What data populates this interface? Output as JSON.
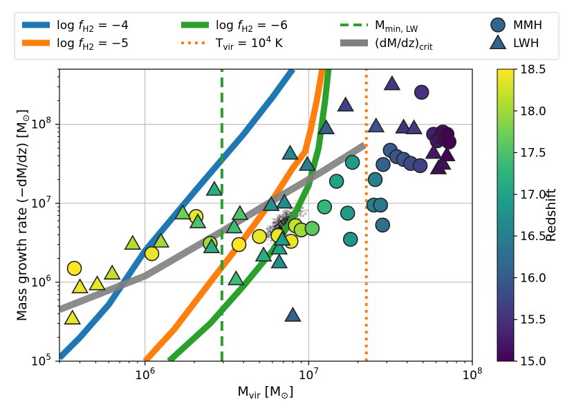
{
  "chart_data": {
    "type": "scatter",
    "title": "",
    "xlabel": {
      "base": "M",
      "sub": "vir",
      "unit": " [M",
      "unit_sub": "⊙",
      "close": "]"
    },
    "ylabel": {
      "text": "Mass growth rate (−dM/dz) [M",
      "unit_sub": "⊙",
      "close": "]"
    },
    "x_scale": "log",
    "y_scale": "log",
    "xlim": [
      300000,
      100000000
    ],
    "ylim": [
      100000,
      500000000
    ],
    "grid": true,
    "x_ticks": [
      {
        "value": 1000000,
        "base": "10",
        "exp": "6"
      },
      {
        "value": 10000000,
        "base": "10",
        "exp": "7"
      },
      {
        "value": 100000000,
        "base": "10",
        "exp": "8"
      }
    ],
    "y_ticks": [
      {
        "value": 100000,
        "base": "10",
        "exp": "5"
      },
      {
        "value": 1000000,
        "base": "10",
        "exp": "6"
      },
      {
        "value": 10000000,
        "base": "10",
        "exp": "7"
      },
      {
        "value": 100000000,
        "base": "10",
        "exp": "8"
      }
    ],
    "colorbar": {
      "label": "Redshift",
      "min": 15.0,
      "max": 18.5,
      "ticks": [
        "15.0",
        "15.5",
        "16.0",
        "16.5",
        "17.0",
        "17.5",
        "18.0",
        "18.5"
      ],
      "colormap": [
        "#440154",
        "#482878",
        "#3e4989",
        "#31688e",
        "#26828e",
        "#1f9e89",
        "#35b779",
        "#6ece58",
        "#b5de2b",
        "#fde725"
      ]
    },
    "legend": {
      "placement": "top",
      "entries": [
        {
          "id": "fh2_4",
          "kind": "line",
          "pre": "log ",
          "f": "f",
          "sub": "H2",
          "post": " = −4"
        },
        {
          "id": "fh2_6",
          "kind": "line",
          "pre": "log ",
          "f": "f",
          "sub": "H2",
          "post": " = −6"
        },
        {
          "id": "mmin",
          "kind": "line",
          "pre": "M",
          "f": "",
          "sub": "min, LW",
          "post": ""
        },
        {
          "id": "mmh",
          "kind": "marker",
          "pre": "MMH",
          "f": "",
          "sub": "",
          "post": ""
        },
        {
          "id": "fh2_5",
          "kind": "line",
          "pre": "log ",
          "f": "f",
          "sub": "H2",
          "post": " = −5"
        },
        {
          "id": "tvir",
          "kind": "line",
          "pre": "T",
          "f": "",
          "sub": "vir",
          "post": " = 10",
          "sup": "4",
          "post2": " K"
        },
        {
          "id": "crit",
          "kind": "line",
          "pre": "(dM/dz)",
          "f": "",
          "sub": "crit",
          "post": ""
        },
        {
          "id": "lwh",
          "kind": "marker",
          "pre": "LWH",
          "f": "",
          "sub": "",
          "post": ""
        }
      ]
    },
    "colors": {
      "fh2_4": "#1f77b4",
      "fh2_5": "#ff7f0e",
      "fh2_6": "#2ca02c",
      "mmin": "#2ca02c",
      "tvir": "#ff7f0e",
      "crit": "#808080",
      "grid": "#b0b0b0",
      "scatter": "#000000"
    },
    "curves": [
      {
        "id": "fh2_4",
        "style": "solid",
        "points": [
          [
            300000,
            110000
          ],
          [
            400000,
            200000
          ],
          [
            600000,
            520000
          ],
          [
            1000000,
            2500000
          ],
          [
            2000000,
            14000000
          ],
          [
            4000000,
            75000000
          ],
          [
            6000000,
            220000000
          ],
          [
            8000000,
            500000000
          ]
        ]
      },
      {
        "id": "fh2_5",
        "style": "solid",
        "points": [
          [
            1000000,
            100000
          ],
          [
            1500000,
            250000
          ],
          [
            2500000,
            1000000
          ],
          [
            4000000,
            3500000
          ],
          [
            6000000,
            11000000
          ],
          [
            8000000,
            28000000
          ],
          [
            9500000,
            45000000
          ],
          [
            10200000,
            80000000
          ],
          [
            11200000,
            200000000
          ],
          [
            12100000,
            500000000
          ]
        ]
      },
      {
        "id": "fh2_6",
        "style": "solid",
        "points": [
          [
            1400000,
            100000
          ],
          [
            2500000,
            300000
          ],
          [
            4000000,
            900000
          ],
          [
            6000000,
            2500000
          ],
          [
            8000000,
            6500000
          ],
          [
            10000000,
            17000000
          ],
          [
            11500000,
            50000000
          ],
          [
            12600000,
            200000000
          ],
          [
            13200000,
            500000000
          ]
        ]
      },
      {
        "id": "crit",
        "style": "solid",
        "points": [
          [
            300000,
            450000
          ],
          [
            1000000,
            1200000
          ],
          [
            3000000,
            4500000
          ],
          [
            7000000,
            13000000
          ],
          [
            12000000,
            25000000
          ],
          [
            22000000,
            55000000
          ]
        ]
      },
      {
        "id": "mmin",
        "style": "dashed",
        "points": [
          [
            2950000,
            100000
          ],
          [
            2950000,
            500000000
          ]
        ]
      },
      {
        "id": "tvir",
        "style": "dotted",
        "points": [
          [
            22500000,
            100000
          ],
          [
            22500000,
            500000000
          ]
        ]
      }
    ],
    "mmh": [
      {
        "x": 370000,
        "y": 1500000,
        "z": 18.5
      },
      {
        "x": 1100000,
        "y": 2300000,
        "z": 18.4
      },
      {
        "x": 2050000,
        "y": 6800000,
        "z": 18.4
      },
      {
        "x": 2500000,
        "y": 3100000,
        "z": 18.0
      },
      {
        "x": 3750000,
        "y": 3000000,
        "z": 18.5
      },
      {
        "x": 5000000,
        "y": 3800000,
        "z": 18.4
      },
      {
        "x": 6500000,
        "y": 3900000,
        "z": 18.4
      },
      {
        "x": 7800000,
        "y": 3300000,
        "z": 18.4
      },
      {
        "x": 8300000,
        "y": 5200000,
        "z": 18.2
      },
      {
        "x": 9000000,
        "y": 4600000,
        "z": 18.0
      },
      {
        "x": 10500000,
        "y": 4800000,
        "z": 17.6
      },
      {
        "x": 12500000,
        "y": 9000000,
        "z": 17.3
      },
      {
        "x": 14800000,
        "y": 19000000,
        "z": 17.0
      },
      {
        "x": 17300000,
        "y": 7500000,
        "z": 16.9
      },
      {
        "x": 18500000,
        "y": 33000000,
        "z": 16.9
      },
      {
        "x": 18000000,
        "y": 3500000,
        "z": 16.8
      },
      {
        "x": 25500000,
        "y": 20000000,
        "z": 16.5
      },
      {
        "x": 25000000,
        "y": 9500000,
        "z": 16.5
      },
      {
        "x": 27500000,
        "y": 9500000,
        "z": 16.4
      },
      {
        "x": 28300000,
        "y": 5300000,
        "z": 16.3
      },
      {
        "x": 28500000,
        "y": 31000000,
        "z": 16.1
      },
      {
        "x": 31500000,
        "y": 47000000,
        "z": 16.0
      },
      {
        "x": 34500000,
        "y": 39000000,
        "z": 15.9
      },
      {
        "x": 38000000,
        "y": 36000000,
        "z": 15.9
      },
      {
        "x": 42000000,
        "y": 32000000,
        "z": 15.8
      },
      {
        "x": 48000000,
        "y": 30000000,
        "z": 15.7
      },
      {
        "x": 49000000,
        "y": 255000000,
        "z": 15.5
      },
      {
        "x": 58000000,
        "y": 75000000,
        "z": 15.3
      },
      {
        "x": 61000000,
        "y": 62000000,
        "z": 15.2
      },
      {
        "x": 64000000,
        "y": 70000000,
        "z": 15.2
      },
      {
        "x": 66000000,
        "y": 80000000,
        "z": 15.1
      },
      {
        "x": 68000000,
        "y": 65000000,
        "z": 15.1
      },
      {
        "x": 70000000,
        "y": 75000000,
        "z": 15.0
      },
      {
        "x": 72000000,
        "y": 60000000,
        "z": 15.0
      }
    ],
    "lwh": [
      {
        "x": 360000,
        "y": 350000,
        "z": 18.4
      },
      {
        "x": 400000,
        "y": 870000,
        "z": 18.4
      },
      {
        "x": 510000,
        "y": 950000,
        "z": 18.4
      },
      {
        "x": 630000,
        "y": 1300000,
        "z": 18.2
      },
      {
        "x": 840000,
        "y": 3100000,
        "z": 18.1
      },
      {
        "x": 1250000,
        "y": 3300000,
        "z": 18.0
      },
      {
        "x": 1700000,
        "y": 7500000,
        "z": 17.7
      },
      {
        "x": 2100000,
        "y": 5800000,
        "z": 17.5
      },
      {
        "x": 2550000,
        "y": 2800000,
        "z": 17.2
      },
      {
        "x": 2650000,
        "y": 15000000,
        "z": 17.2
      },
      {
        "x": 3500000,
        "y": 5000000,
        "z": 17.4
      },
      {
        "x": 3800000,
        "y": 7400000,
        "z": 17.5
      },
      {
        "x": 3600000,
        "y": 1100000,
        "z": 17.4
      },
      {
        "x": 5300000,
        "y": 2200000,
        "z": 17.2
      },
      {
        "x": 5900000,
        "y": 9600000,
        "z": 16.8
      },
      {
        "x": 6600000,
        "y": 2700000,
        "z": 17.0
      },
      {
        "x": 6900000,
        "y": 3500000,
        "z": 16.9
      },
      {
        "x": 6600000,
        "y": 1800000,
        "z": 16.7
      },
      {
        "x": 7100000,
        "y": 10300000,
        "z": 16.7
      },
      {
        "x": 7700000,
        "y": 43000000,
        "z": 16.6
      },
      {
        "x": 8000000,
        "y": 380000,
        "z": 16.1
      },
      {
        "x": 9800000,
        "y": 31000000,
        "z": 16.5
      },
      {
        "x": 12800000,
        "y": 90000000,
        "z": 16.1
      },
      {
        "x": 16800000,
        "y": 175000000,
        "z": 15.7
      },
      {
        "x": 25800000,
        "y": 95000000,
        "z": 15.9
      },
      {
        "x": 32300000,
        "y": 325000000,
        "z": 15.6
      },
      {
        "x": 38000000,
        "y": 92000000,
        "z": 15.5
      },
      {
        "x": 44000000,
        "y": 90000000,
        "z": 15.6
      },
      {
        "x": 58000000,
        "y": 44000000,
        "z": 15.2
      },
      {
        "x": 62000000,
        "y": 28000000,
        "z": 15.1
      },
      {
        "x": 66000000,
        "y": 32000000,
        "z": 15.1
      },
      {
        "x": 70000000,
        "y": 41000000,
        "z": 15.0
      }
    ],
    "background_cloud": {
      "color": "#000000",
      "opacity": 0.2,
      "xrange": [
        3200000,
        23000000
      ],
      "yrange": [
        1500000,
        60000000
      ]
    }
  }
}
